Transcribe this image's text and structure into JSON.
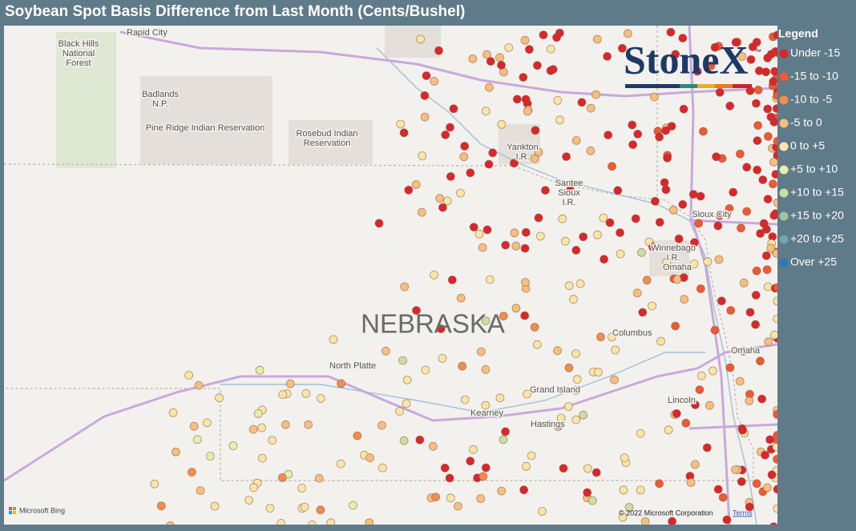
{
  "header": {
    "title": "Soybean Spot Basis Difference from Last Month (Cents/Bushel)"
  },
  "legend": {
    "title": "Legend",
    "items": [
      {
        "label": "Under -15",
        "color": "#d9272b"
      },
      {
        "label": "-15 to -10",
        "color": "#ee5a32"
      },
      {
        "label": "-10 to -5",
        "color": "#f08e4c"
      },
      {
        "label": "-5 to 0",
        "color": "#f5bf7e"
      },
      {
        "label": "0 to +5",
        "color": "#f8e6a6"
      },
      {
        "label": "+5 to +10",
        "color": "#e6efaa"
      },
      {
        "label": "+10 to +15",
        "color": "#c8dfa0"
      },
      {
        "label": "+15 to +20",
        "color": "#9fc79e"
      },
      {
        "label": "+20 to +25",
        "color": "#6ea7ae"
      },
      {
        "label": "Over +25",
        "color": "#2a78be"
      }
    ]
  },
  "logo": {
    "text": "StoneX",
    "trademark": "™"
  },
  "map": {
    "labels": [
      "Rapid City",
      "Black Hills",
      "National",
      "Forest",
      "Badlands",
      "N.P.",
      "Pine Ridge Indian Reservation",
      "Rosebud Indian",
      "Reservation",
      "Yankton",
      "I.R.",
      "Santee",
      "Sioux",
      "I.R.",
      "Sioux City",
      "Winnebago",
      "I.R.",
      "Omaha",
      "NEBRASKA",
      "North Platte",
      "Columbus",
      "Grand Island",
      "Kearney",
      "Hastings",
      "Omaha",
      "Lincoln"
    ]
  },
  "attribution": {
    "provider": "Microsoft Bing",
    "copyright": "© 2022 Microsoft Corporation",
    "terms": "Terms"
  }
}
